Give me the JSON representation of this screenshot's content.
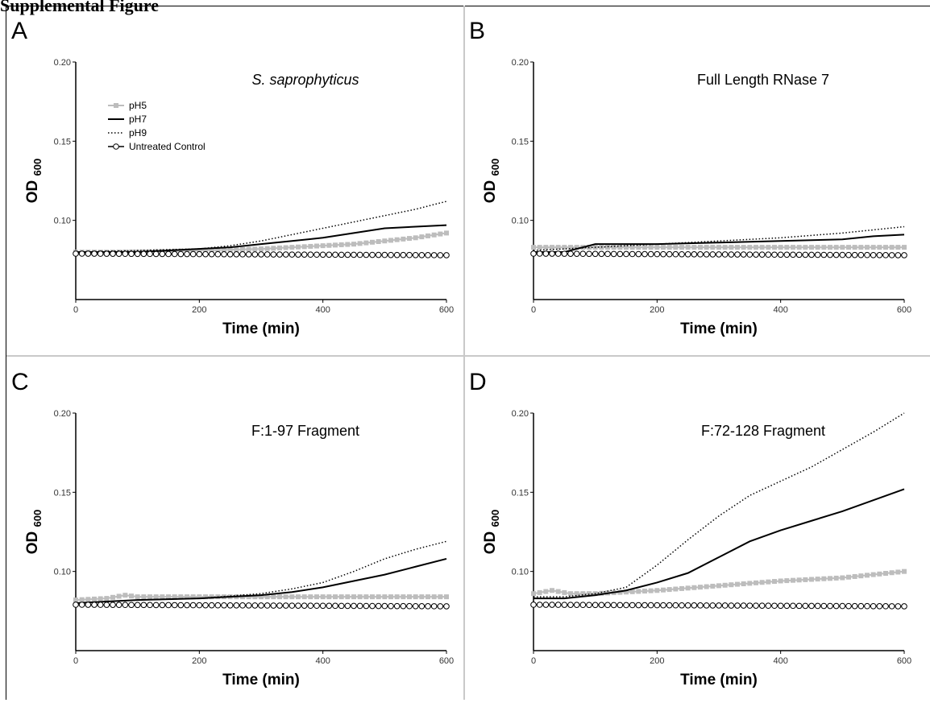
{
  "page": {
    "header": "Supplemental Figure"
  },
  "style": {
    "pH5_color": "#bdbdbd",
    "pH7_color": "#000000",
    "pH9_color": "#000000",
    "control_color": "#000000"
  },
  "chart_data": [
    {
      "panel": "A",
      "type": "line",
      "title": "S. saprophyticus",
      "xlabel": "Time (min)",
      "ylabel": "OD",
      "ylabel_sub": "600",
      "xlim": [
        0,
        600
      ],
      "ylim": [
        0.05,
        0.2
      ],
      "xticks": [
        0,
        200,
        400,
        600
      ],
      "yticks": [
        0.1,
        0.15,
        0.2
      ],
      "ytick_labels": [
        "0.10",
        "0.15",
        "0.20"
      ],
      "legend": {
        "position": "upper-left",
        "entries": [
          "pH5",
          "pH7",
          "pH9",
          "Untreated Control"
        ]
      },
      "series": [
        {
          "name": "pH5",
          "style": "gray-square-markers",
          "x": [
            0,
            100,
            200,
            300,
            350,
            400,
            450,
            500,
            550,
            600
          ],
          "y": [
            0.08,
            0.08,
            0.081,
            0.082,
            0.083,
            0.084,
            0.085,
            0.087,
            0.089,
            0.092
          ]
        },
        {
          "name": "pH7",
          "style": "solid",
          "x": [
            0,
            100,
            200,
            250,
            300,
            350,
            400,
            450,
            500,
            550,
            600
          ],
          "y": [
            0.08,
            0.08,
            0.082,
            0.083,
            0.085,
            0.087,
            0.089,
            0.092,
            0.095,
            0.096,
            0.097
          ]
        },
        {
          "name": "pH9",
          "style": "dotted",
          "x": [
            0,
            100,
            200,
            250,
            300,
            350,
            400,
            450,
            500,
            550,
            600
          ],
          "y": [
            0.08,
            0.081,
            0.082,
            0.084,
            0.087,
            0.091,
            0.095,
            0.099,
            0.103,
            0.107,
            0.112
          ]
        },
        {
          "name": "Untreated Control",
          "style": "circle-markers",
          "x": [
            0,
            600
          ],
          "y": [
            0.079,
            0.078
          ]
        }
      ]
    },
    {
      "panel": "B",
      "type": "line",
      "title": "Full Length RNase 7",
      "xlabel": "Time (min)",
      "ylabel": "OD",
      "ylabel_sub": "600",
      "xlim": [
        0,
        600
      ],
      "ylim": [
        0.05,
        0.2
      ],
      "xticks": [
        0,
        200,
        400,
        600
      ],
      "yticks": [
        0.1,
        0.15,
        0.2
      ],
      "ytick_labels": [
        "0.10",
        "0.15",
        "0.20"
      ],
      "series": [
        {
          "name": "pH5",
          "style": "gray-square-markers",
          "x": [
            0,
            100,
            200,
            300,
            400,
            500,
            600
          ],
          "y": [
            0.083,
            0.083,
            0.083,
            0.083,
            0.083,
            0.083,
            0.083
          ]
        },
        {
          "name": "pH7",
          "style": "solid",
          "x": [
            0,
            50,
            70,
            100,
            200,
            300,
            400,
            500,
            550,
            600
          ],
          "y": [
            0.08,
            0.08,
            0.082,
            0.085,
            0.085,
            0.086,
            0.087,
            0.088,
            0.09,
            0.091
          ]
        },
        {
          "name": "pH9",
          "style": "dotted",
          "x": [
            0,
            100,
            200,
            300,
            400,
            500,
            550,
            600
          ],
          "y": [
            0.081,
            0.083,
            0.085,
            0.087,
            0.089,
            0.092,
            0.094,
            0.096
          ]
        },
        {
          "name": "Untreated Control",
          "style": "circle-markers",
          "x": [
            0,
            600
          ],
          "y": [
            0.079,
            0.078
          ]
        }
      ]
    },
    {
      "panel": "C",
      "type": "line",
      "title": "F:1-97 Fragment",
      "xlabel": "Time (min)",
      "ylabel": "OD",
      "ylabel_sub": "600",
      "xlim": [
        0,
        600
      ],
      "ylim": [
        0.05,
        0.2
      ],
      "xticks": [
        0,
        200,
        400,
        600
      ],
      "yticks": [
        0.1,
        0.15,
        0.2
      ],
      "ytick_labels": [
        "0.10",
        "0.15",
        "0.20"
      ],
      "series": [
        {
          "name": "pH5",
          "style": "gray-square-markers",
          "x": [
            0,
            50,
            80,
            100,
            200,
            300,
            400,
            500,
            600
          ],
          "y": [
            0.082,
            0.083,
            0.085,
            0.084,
            0.084,
            0.084,
            0.084,
            0.084,
            0.084
          ]
        },
        {
          "name": "pH7",
          "style": "solid",
          "x": [
            0,
            100,
            200,
            300,
            350,
            400,
            450,
            500,
            550,
            600
          ],
          "y": [
            0.08,
            0.082,
            0.083,
            0.085,
            0.087,
            0.09,
            0.094,
            0.098,
            0.103,
            0.108
          ]
        },
        {
          "name": "pH9",
          "style": "dotted",
          "x": [
            0,
            100,
            200,
            300,
            350,
            400,
            450,
            500,
            550,
            600
          ],
          "y": [
            0.08,
            0.082,
            0.083,
            0.086,
            0.089,
            0.093,
            0.1,
            0.108,
            0.114,
            0.119
          ]
        },
        {
          "name": "Untreated Control",
          "style": "circle-markers",
          "x": [
            0,
            600
          ],
          "y": [
            0.079,
            0.078
          ]
        }
      ]
    },
    {
      "panel": "D",
      "type": "line",
      "title": "F:72-128 Fragment",
      "xlabel": "Time (min)",
      "ylabel": "OD",
      "ylabel_sub": "600",
      "xlim": [
        0,
        600
      ],
      "ylim": [
        0.05,
        0.2
      ],
      "xticks": [
        0,
        200,
        400,
        600
      ],
      "yticks": [
        0.1,
        0.15,
        0.2
      ],
      "ytick_labels": [
        "0.10",
        "0.15",
        "0.20"
      ],
      "series": [
        {
          "name": "pH5",
          "style": "gray-square-markers",
          "x": [
            0,
            30,
            60,
            100,
            150,
            200,
            300,
            400,
            500,
            600
          ],
          "y": [
            0.086,
            0.088,
            0.086,
            0.086,
            0.087,
            0.088,
            0.091,
            0.094,
            0.096,
            0.1
          ]
        },
        {
          "name": "pH7",
          "style": "solid",
          "x": [
            0,
            50,
            100,
            150,
            200,
            250,
            300,
            350,
            400,
            450,
            500,
            550,
            600
          ],
          "y": [
            0.083,
            0.083,
            0.085,
            0.088,
            0.093,
            0.099,
            0.109,
            0.119,
            0.126,
            0.132,
            0.138,
            0.145,
            0.152
          ]
        },
        {
          "name": "pH9",
          "style": "dotted",
          "x": [
            0,
            50,
            100,
            150,
            200,
            250,
            300,
            350,
            400,
            450,
            500,
            550,
            600
          ],
          "y": [
            0.084,
            0.084,
            0.086,
            0.09,
            0.104,
            0.12,
            0.135,
            0.148,
            0.157,
            0.166,
            0.177,
            0.188,
            0.2
          ]
        },
        {
          "name": "Untreated Control",
          "style": "circle-markers",
          "x": [
            0,
            600
          ],
          "y": [
            0.079,
            0.078
          ]
        }
      ]
    }
  ]
}
